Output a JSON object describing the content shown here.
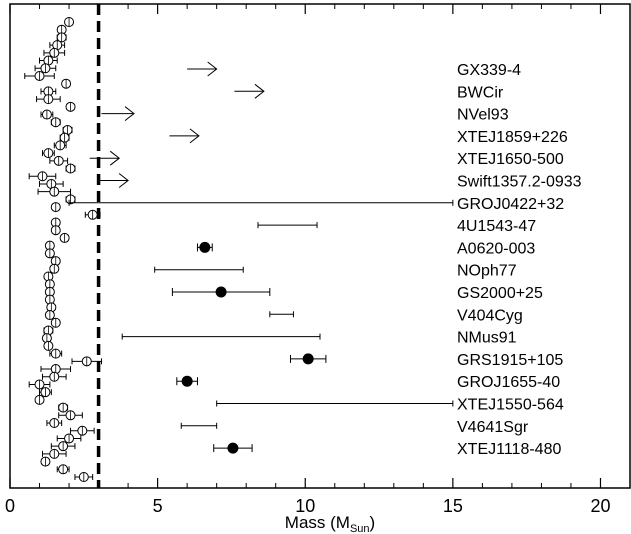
{
  "chart_data": {
    "type": "scatter",
    "title": "",
    "xlabel": "Mass (M",
    "xlabel_subscript": "Sun",
    "xlabel_close": ")",
    "xlim": [
      0,
      21
    ],
    "xticks": [
      "0",
      "5",
      "10",
      "15",
      "20"
    ],
    "threshold_line_x": 3,
    "neutron_stars": [
      {
        "mass": 2.0,
        "err": 0.1
      },
      {
        "mass": 1.75,
        "err": 0.12
      },
      {
        "mass": 1.75,
        "err": 0.15
      },
      {
        "mass": 1.6,
        "err": 0.25
      },
      {
        "mass": 1.5,
        "err": 0.35
      },
      {
        "mass": 1.3,
        "err": 0.3
      },
      {
        "mass": 1.2,
        "err": 0.35
      },
      {
        "mass": 1.0,
        "err": 0.5
      },
      {
        "mass": 1.9,
        "err": 0.12
      },
      {
        "mass": 1.3,
        "err": 0.25
      },
      {
        "mass": 1.3,
        "err": 0.4
      },
      {
        "mass": 2.05,
        "err": 0.12
      },
      {
        "mass": 1.25,
        "err": 0.2
      },
      {
        "mass": 1.55,
        "err": 0.15
      },
      {
        "mass": 1.95,
        "err": 0.15
      },
      {
        "mass": 1.85,
        "err": 0.15
      },
      {
        "mass": 1.7,
        "err": 0.2
      },
      {
        "mass": 1.3,
        "err": 0.2
      },
      {
        "mass": 1.65,
        "err": 0.3
      },
      {
        "mass": 2.05,
        "err": 0.15
      },
      {
        "mass": 1.1,
        "err": 0.45
      },
      {
        "mass": 1.4,
        "err": 0.4
      },
      {
        "mass": 1.5,
        "err": 0.55
      },
      {
        "mass": 2.05,
        "err": 0.15
      },
      {
        "mass": 1.55,
        "err": 0.12
      },
      {
        "mass": 2.8,
        "err": 0.25
      },
      {
        "mass": 1.55,
        "err": 0.12
      },
      {
        "mass": 1.55,
        "err": 0.12
      },
      {
        "mass": 1.85,
        "err": 0.12
      },
      {
        "mass": 1.35,
        "err": 0.12
      },
      {
        "mass": 1.35,
        "err": 0.12
      },
      {
        "mass": 1.55,
        "err": 0.12
      },
      {
        "mass": 1.5,
        "err": 0.12
      },
      {
        "mass": 1.3,
        "err": 0.12
      },
      {
        "mass": 1.35,
        "err": 0.12
      },
      {
        "mass": 1.35,
        "err": 0.12
      },
      {
        "mass": 1.35,
        "err": 0.12
      },
      {
        "mass": 1.4,
        "err": 0.12
      },
      {
        "mass": 1.35,
        "err": 0.12
      },
      {
        "mass": 1.55,
        "err": 0.12
      },
      {
        "mass": 1.3,
        "err": 0.15
      },
      {
        "mass": 1.25,
        "err": 0.12
      },
      {
        "mass": 1.3,
        "err": 0.12
      },
      {
        "mass": 1.55,
        "err": 0.2
      },
      {
        "mass": 2.6,
        "err": 0.5
      },
      {
        "mass": 1.55,
        "err": 0.5
      },
      {
        "mass": 1.5,
        "err": 0.4
      },
      {
        "mass": 1.0,
        "err": 0.35
      },
      {
        "mass": 1.2,
        "err": 0.2
      },
      {
        "mass": 1.0,
        "err": 0.12
      },
      {
        "mass": 1.8,
        "err": 0.15
      },
      {
        "mass": 2.05,
        "err": 0.4
      },
      {
        "mass": 1.5,
        "err": 0.25
      },
      {
        "mass": 2.45,
        "err": 0.4
      },
      {
        "mass": 2.0,
        "err": 0.4
      },
      {
        "mass": 1.8,
        "err": 0.4
      },
      {
        "mass": 1.5,
        "err": 0.4
      },
      {
        "mass": 1.2,
        "err": 0.12
      },
      {
        "mass": 1.8,
        "err": 0.2
      },
      {
        "mass": 2.5,
        "err": 0.3
      }
    ],
    "black_holes": [
      {
        "name": "GX339-4",
        "type": "lower_limit",
        "min": 6.0,
        "arrow_to": 7.0
      },
      {
        "name": "BWCir",
        "type": "lower_limit",
        "min": 7.6,
        "arrow_to": 8.6
      },
      {
        "name": "NVel93",
        "type": "lower_limit",
        "min": 3.1,
        "arrow_to": 4.2
      },
      {
        "name": "XTEJ1859+226",
        "type": "lower_limit",
        "min": 5.4,
        "arrow_to": 6.4
      },
      {
        "name": "XTEJ1650-500",
        "type": "lower_limit",
        "min": 2.7,
        "arrow_to": 3.7
      },
      {
        "name": "Swift1357.2-0933",
        "type": "lower_limit",
        "min": 3.0,
        "arrow_to": 4.0
      },
      {
        "name": "GROJ0422+32",
        "type": "range",
        "min": 2.0,
        "max": 15.0
      },
      {
        "name": "4U1543-47",
        "type": "range",
        "min": 8.4,
        "max": 10.4
      },
      {
        "name": "A0620-003",
        "type": "measured",
        "value": 6.6,
        "err": 0.25
      },
      {
        "name": "NOph77",
        "type": "range",
        "min": 4.9,
        "max": 7.9
      },
      {
        "name": "GS2000+25",
        "type": "measured",
        "value": 7.15,
        "err": 1.65
      },
      {
        "name": "V404Cyg",
        "type": "range",
        "min": 8.8,
        "max": 9.6
      },
      {
        "name": "NMus91",
        "type": "range",
        "min": 3.8,
        "max": 10.5
      },
      {
        "name": "GRS1915+105",
        "type": "measured",
        "value": 10.1,
        "err": 0.6
      },
      {
        "name": "GROJ1655-40",
        "type": "measured",
        "value": 6.0,
        "err": 0.35
      },
      {
        "name": "XTEJ1550-564",
        "type": "range",
        "min": 7.0,
        "max": 15.0
      },
      {
        "name": "V4641Sgr",
        "type": "range",
        "min": 5.8,
        "max": 7.0
      },
      {
        "name": "XTEJ1118-480",
        "type": "measured",
        "value": 7.55,
        "err": 0.65
      }
    ]
  }
}
